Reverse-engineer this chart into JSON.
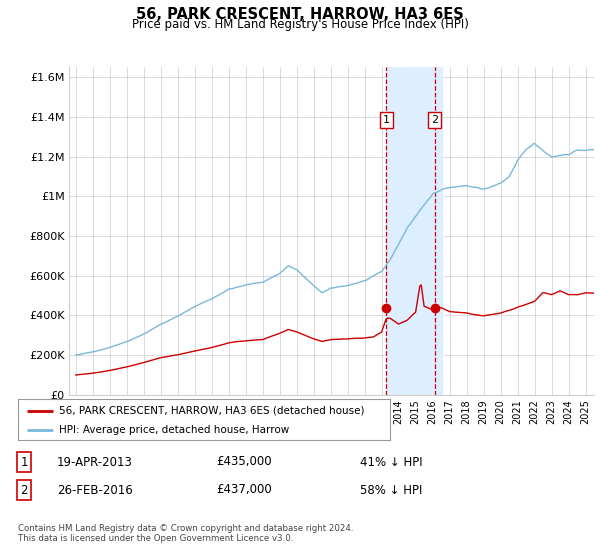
{
  "title": "56, PARK CRESCENT, HARROW, HA3 6ES",
  "subtitle": "Price paid vs. HM Land Registry's House Price Index (HPI)",
  "hpi_label": "HPI: Average price, detached house, Harrow",
  "property_label": "56, PARK CRESCENT, HARROW, HA3 6ES (detached house)",
  "hpi_color": "#7ab8d9",
  "property_color": "#cc0000",
  "vspan_color": "#ddeeff",
  "vline_color": "#cc0000",
  "box_border_color": "#cc0000",
  "legend_border_color": "#999999",
  "transaction1_date": "19-APR-2013",
  "transaction1_price": "£435,000",
  "transaction1_pct": "41% ↓ HPI",
  "transaction2_date": "26-FEB-2016",
  "transaction2_price": "£437,000",
  "transaction2_pct": "58% ↓ HPI",
  "footer": "Contains HM Land Registry data © Crown copyright and database right 2024.\nThis data is licensed under the Open Government Licence v3.0.",
  "ylim": [
    0,
    1650000
  ],
  "yticks": [
    0,
    200000,
    400000,
    600000,
    800000,
    1000000,
    1200000,
    1400000,
    1600000
  ],
  "ytick_labels": [
    "£0",
    "£200K",
    "£400K",
    "£600K",
    "£800K",
    "£1M",
    "£1.2M",
    "£1.4M",
    "£1.6M"
  ],
  "sale1_year": 2013.28,
  "sale1_value": 435000,
  "sale2_year": 2016.12,
  "sale2_value": 437000,
  "vspan_start": 2013.28,
  "vspan_end": 2016.58,
  "xmin": 1995.0,
  "xmax": 2025.5
}
